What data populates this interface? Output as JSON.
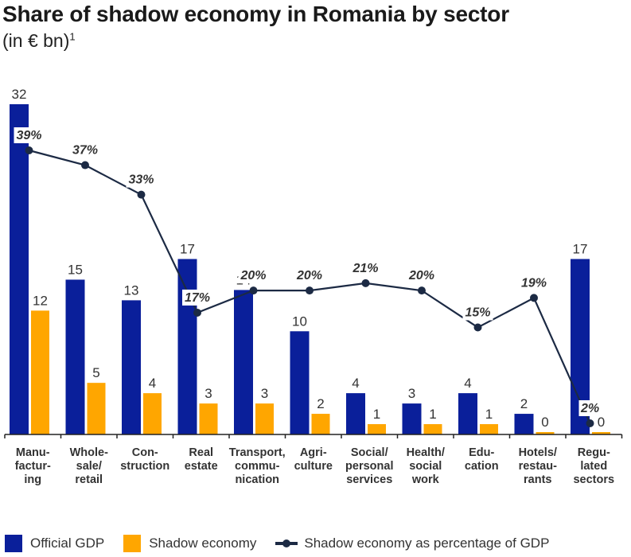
{
  "colors": {
    "official_gdp": "#0a1f9a",
    "shadow_economy": "#ffa600",
    "line": "#1c2a44",
    "axis": "#222222"
  },
  "chart_data": {
    "type": "bar",
    "title": "Share of shadow economy in Romania by sector",
    "subtitle": "(in € bn)",
    "subtitle_footnote": "1",
    "xlabel": "",
    "ylabel": "",
    "ylim": [
      0,
      32
    ],
    "grid": false,
    "legend_position": "bottom-left",
    "categories": [
      "Manu-\nfactur-\ning",
      "Whole-\nsale/\nretail",
      "Con-\nstruction",
      "Real\nestate",
      "Transport,\ncommu-\nnication",
      "Agri-\nculture",
      "Social/\npersonal\nservices",
      "Health/\nsocial\nwork",
      "Edu-\ncation",
      "Hotels/\nrestau-\nrants",
      "Regu-\nlated\nsectors"
    ],
    "series": [
      {
        "name": "Official GDP",
        "type": "bar",
        "values": [
          32,
          15,
          13,
          17,
          14,
          10,
          4,
          3,
          4,
          2,
          17
        ]
      },
      {
        "name": "Shadow economy",
        "type": "bar",
        "values": [
          12,
          5,
          4,
          3,
          3,
          2,
          1,
          1,
          1,
          0,
          0
        ]
      },
      {
        "name": "Shadow economy as percentage of GDP",
        "type": "line",
        "unit": "%",
        "values": [
          39,
          37,
          33,
          17,
          20,
          20,
          21,
          20,
          15,
          19,
          2
        ]
      }
    ]
  },
  "legend": {
    "official_gdp": "Official GDP",
    "shadow_economy": "Shadow economy",
    "percentage": "Shadow economy as percentage of GDP"
  }
}
